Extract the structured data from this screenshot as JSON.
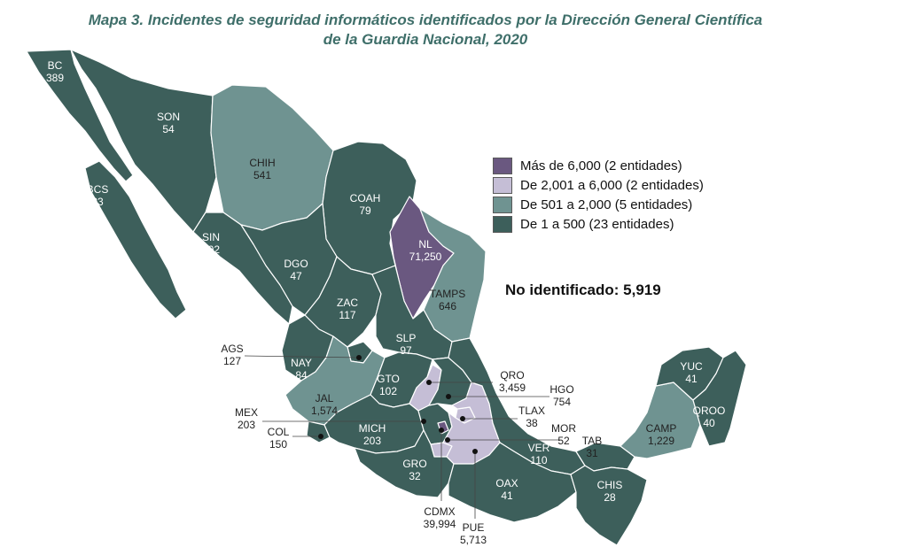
{
  "title": {
    "line1": "Mapa 3. Incidentes de seguridad informáticos identificados por la Dirección General Científica",
    "line2": "de la Guardia Nacional, 2020"
  },
  "colors": {
    "dark_teal": "#3d5f5b",
    "light_teal": "#6f9391",
    "light_purple": "#c5bed6",
    "dark_purple": "#6a5880",
    "border": "#ffffff"
  },
  "legend": [
    {
      "label": "Más de 6,000 (2 entidades)",
      "color": "#6a5880"
    },
    {
      "label": "De 2,001 a 6,000 (2 entidades)",
      "color": "#c5bed6"
    },
    {
      "label": "De 501 a 2,000 (5 entidades)",
      "color": "#6f9391"
    },
    {
      "label": "De 1 a 500 (23 entidades)",
      "color": "#3d5f5b"
    }
  ],
  "unidentified": "No identificado: 5,919",
  "states": {
    "BC": {
      "abbr": "BC",
      "value": "389"
    },
    "BCS": {
      "abbr": "BCS",
      "value": "23"
    },
    "SON": {
      "abbr": "SON",
      "value": "54"
    },
    "CHIH": {
      "abbr": "CHIH",
      "value": "541"
    },
    "COAH": {
      "abbr": "COAH",
      "value": "79"
    },
    "NL": {
      "abbr": "NL",
      "value": "71,250"
    },
    "TAMPS": {
      "abbr": "TAMPS",
      "value": "646"
    },
    "SIN": {
      "abbr": "SIN",
      "value": "302"
    },
    "DGO": {
      "abbr": "DGO",
      "value": "47"
    },
    "ZAC": {
      "abbr": "ZAC",
      "value": "117"
    },
    "SLP": {
      "abbr": "SLP",
      "value": "97"
    },
    "AGS": {
      "abbr": "AGS",
      "value": "127"
    },
    "NAY": {
      "abbr": "NAY",
      "value": "84"
    },
    "JAL": {
      "abbr": "JAL",
      "value": "1,574"
    },
    "GTO": {
      "abbr": "GTO",
      "value": "102"
    },
    "QRO": {
      "abbr": "QRO",
      "value": "3,459"
    },
    "HGO": {
      "abbr": "HGO",
      "value": "754"
    },
    "MEX": {
      "abbr": "MEX",
      "value": "203"
    },
    "TLAX": {
      "abbr": "TLAX",
      "value": "38"
    },
    "COL": {
      "abbr": "COL",
      "value": "150"
    },
    "MICH": {
      "abbr": "MICH",
      "value": "203"
    },
    "MOR": {
      "abbr": "MOR",
      "value": "52"
    },
    "TAB": {
      "abbr": "TAB",
      "value": "31"
    },
    "VER": {
      "abbr": "VER",
      "value": "110"
    },
    "GRO": {
      "abbr": "GRO",
      "value": "32"
    },
    "OAX": {
      "abbr": "OAX",
      "value": "41"
    },
    "CHIS": {
      "abbr": "CHIS",
      "value": "28"
    },
    "CAMP": {
      "abbr": "CAMP",
      "value": "1,229"
    },
    "YUC": {
      "abbr": "YUC",
      "value": "41"
    },
    "QROO": {
      "abbr": "QROO",
      "value": "40"
    },
    "CDMX": {
      "abbr": "CDMX",
      "value": "39,994"
    },
    "PUE": {
      "abbr": "PUE",
      "value": "5,713"
    }
  }
}
